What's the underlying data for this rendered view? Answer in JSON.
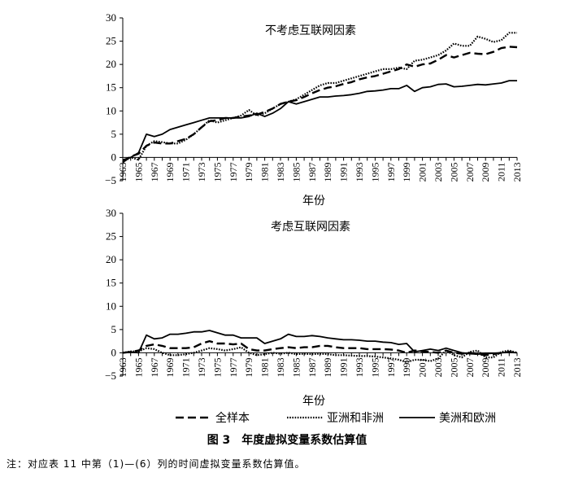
{
  "figure_caption": "图 3　年度虚拟变量系数估算值",
  "note": "注：对应表 11 中第（1)—(6）列的时间虚拟变量系数估算值。",
  "chart_data": [
    {
      "type": "line",
      "title": "不考虑互联网因素",
      "xlabel": "年份",
      "ylabel": "",
      "ylim": [
        -5,
        30
      ],
      "yticks": [
        "30",
        "25",
        "20",
        "15",
        "10",
        "5",
        "0",
        "-5"
      ],
      "x": [
        1963,
        1964,
        1965,
        1966,
        1967,
        1968,
        1969,
        1970,
        1971,
        1972,
        1973,
        1974,
        1975,
        1976,
        1977,
        1978,
        1979,
        1980,
        1981,
        1982,
        1983,
        1984,
        1985,
        1986,
        1987,
        1988,
        1989,
        1990,
        1991,
        1992,
        1993,
        1994,
        1995,
        1996,
        1997,
        1998,
        1999,
        2000,
        2001,
        2002,
        2003,
        2004,
        2005,
        2006,
        2007,
        2008,
        2009,
        2010,
        2011,
        2012,
        2013
      ],
      "xtick_labels": [
        "1963",
        "1965",
        "1967",
        "1969",
        "1971",
        "1973",
        "1975",
        "1977",
        "1979",
        "1981",
        "1983",
        "1985",
        "1987",
        "1989",
        "1991",
        "1993",
        "1995",
        "1997",
        "1999",
        "2001",
        "2003",
        "2005",
        "2007",
        "2009",
        "2011",
        "2013"
      ],
      "series": [
        {
          "name": "全样本",
          "style": "dashed",
          "color": "#000000",
          "values": [
            -1,
            0.2,
            0.8,
            2.5,
            3.2,
            3,
            3,
            3.5,
            4,
            5,
            6.5,
            7.8,
            8,
            8.5,
            8.5,
            8.8,
            9,
            9.2,
            9.8,
            10.5,
            11.5,
            12,
            12.3,
            13,
            13.8,
            14.5,
            15,
            15.3,
            15.8,
            16.2,
            16.8,
            17.2,
            17.5,
            18,
            18.5,
            19,
            20,
            19.5,
            20,
            20.2,
            21,
            22,
            21.5,
            22,
            22.5,
            22.3,
            22.2,
            22.7,
            23.5,
            23.8,
            23.7
          ]
        },
        {
          "name": "亚洲和非洲",
          "style": "dotted",
          "color": "#000000",
          "values": [
            -1,
            0,
            -0.5,
            2.5,
            3.5,
            3.3,
            3,
            3,
            3.8,
            5,
            6.5,
            8,
            7.5,
            8,
            8.5,
            9,
            10.2,
            9,
            9.5,
            10.5,
            11.5,
            12,
            12.5,
            13.5,
            14.5,
            15.5,
            16,
            16,
            16.5,
            17,
            17.5,
            18,
            18.5,
            19,
            19,
            19.3,
            19,
            20.8,
            21,
            21.5,
            22,
            23,
            24.5,
            24,
            24,
            26,
            25.5,
            24.8,
            25.2,
            26.8,
            26.8
          ]
        },
        {
          "name": "美洲和欧洲",
          "style": "solid",
          "color": "#000000",
          "values": [
            -0.5,
            0,
            1,
            5,
            4.5,
            5,
            6,
            6.5,
            7,
            7.5,
            8,
            8.5,
            8.5,
            8.5,
            8.5,
            8.5,
            8.8,
            9.5,
            8.8,
            9.5,
            10.5,
            12,
            11.5,
            12,
            12.5,
            13,
            13,
            13.2,
            13.3,
            13.5,
            13.8,
            14.2,
            14.3,
            14.5,
            14.8,
            14.8,
            15.5,
            14.2,
            15,
            15.2,
            15.7,
            15.8,
            15.2,
            15.3,
            15.5,
            15.7,
            15.6,
            15.8,
            16,
            16.5,
            16.5
          ]
        }
      ]
    },
    {
      "type": "line",
      "title": "考虑互联网因素",
      "xlabel": "年份",
      "ylabel": "",
      "ylim": [
        -5,
        30
      ],
      "yticks": [
        "30",
        "25",
        "20",
        "15",
        "10",
        "5",
        "0",
        "-5"
      ],
      "x": [
        1963,
        1964,
        1965,
        1966,
        1967,
        1968,
        1969,
        1970,
        1971,
        1972,
        1973,
        1974,
        1975,
        1976,
        1977,
        1978,
        1979,
        1980,
        1981,
        1982,
        1983,
        1984,
        1985,
        1986,
        1987,
        1988,
        1989,
        1990,
        1991,
        1992,
        1993,
        1994,
        1995,
        1996,
        1997,
        1998,
        1999,
        2000,
        2001,
        2002,
        2003,
        2004,
        2005,
        2006,
        2007,
        2008,
        2009,
        2010,
        2011,
        2012,
        2013
      ],
      "xtick_labels": [
        "1963",
        "1965",
        "1967",
        "1969",
        "1971",
        "1973",
        "1975",
        "1977",
        "1979",
        "1981",
        "1983",
        "1985",
        "1987",
        "1989",
        "1991",
        "1993",
        "1995",
        "1997",
        "1999",
        "2001",
        "2003",
        "2005",
        "2007",
        "2009",
        "2011",
        "2013"
      ],
      "series": [
        {
          "name": "全样本",
          "style": "dashed",
          "color": "#000000",
          "values": [
            0,
            0.2,
            0.5,
            1.5,
            1.8,
            1.5,
            1,
            1,
            1,
            1.2,
            2,
            2.5,
            2,
            2,
            1.8,
            2,
            0.8,
            0.5,
            0.5,
            0.8,
            1,
            1.2,
            1,
            1.2,
            1.2,
            1.5,
            1.5,
            1.2,
            1,
            1,
            1,
            0.8,
            0.8,
            0.8,
            0.7,
            0.5,
            0,
            0.5,
            0.3,
            0.2,
            0,
            0.5,
            0,
            -0.2,
            0,
            -0.3,
            -0.5,
            -0.3,
            0,
            0.2,
            0
          ]
        },
        {
          "name": "亚洲和非洲",
          "style": "dotted",
          "color": "#000000",
          "values": [
            0,
            0.3,
            0.3,
            1,
            0.8,
            0,
            -0.5,
            -0.5,
            -0.3,
            0,
            0.5,
            1,
            0.8,
            0.5,
            0.8,
            1.2,
            0,
            -0.5,
            -0.3,
            0,
            -0.2,
            0,
            -0.3,
            -0.2,
            -0.3,
            -0.2,
            -0.3,
            -0.5,
            -0.5,
            -0.6,
            -0.7,
            -0.7,
            -0.8,
            -1,
            -1.2,
            -1.5,
            -2,
            -1.5,
            -1.5,
            -1.8,
            -1.2,
            0.5,
            -0.5,
            -1,
            0.2,
            0.5,
            -1,
            -1,
            0.2,
            0.5,
            0
          ]
        },
        {
          "name": "美洲和欧洲",
          "style": "solid",
          "color": "#000000",
          "values": [
            0,
            0.2,
            0,
            3.8,
            3,
            3.2,
            4,
            4,
            4.2,
            4.5,
            4.5,
            4.8,
            4.3,
            3.8,
            3.8,
            3.2,
            3.2,
            3.2,
            2,
            2.5,
            3,
            4,
            3.5,
            3.5,
            3.7,
            3.5,
            3.2,
            3,
            2.8,
            2.8,
            2.7,
            2.5,
            2.5,
            2.3,
            2.2,
            1.8,
            2,
            0.2,
            0.5,
            0.8,
            0.5,
            1,
            0.5,
            0,
            -0.2,
            -0.3,
            -0.2,
            -0.1,
            0,
            0.1,
            0
          ]
        }
      ]
    }
  ]
}
